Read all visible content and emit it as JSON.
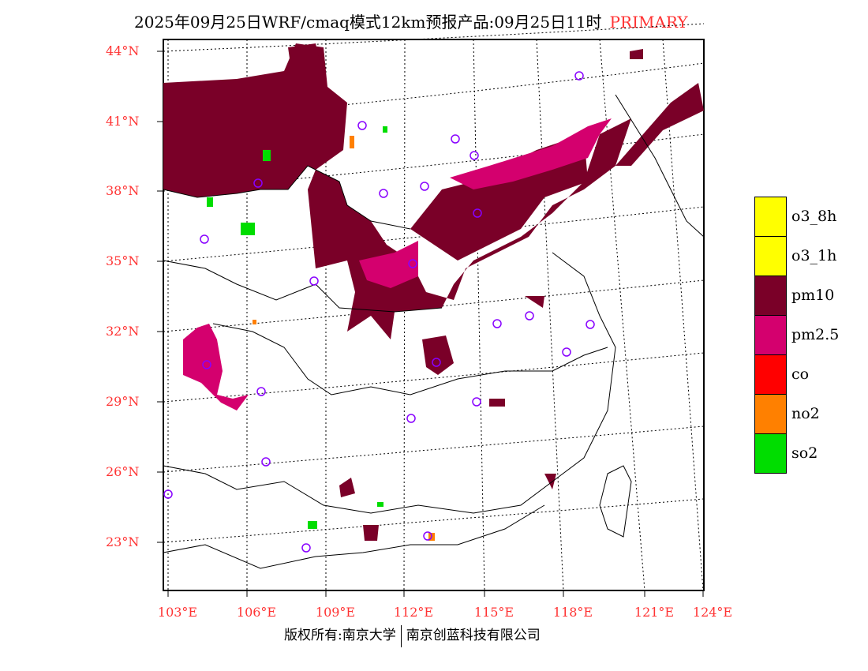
{
  "title": {
    "main": "2025年09月25日WRF/cmaq模式12km预报产品:09月25日11时",
    "tag": "PRIMARY"
  },
  "lat_labels": [
    "44°N",
    "41°N",
    "38°N",
    "35°N",
    "32°N",
    "29°N",
    "26°N",
    "23°N"
  ],
  "lon_labels": [
    "103°E",
    "106°E",
    "109°E",
    "112°E",
    "115°E",
    "118°E",
    "121°E",
    "124°E"
  ],
  "legend": [
    {
      "label": "o3_8h",
      "color": "#ffff00"
    },
    {
      "label": "o3_1h",
      "color": "#ffff00"
    },
    {
      "label": "pm10",
      "color": "#7a0028"
    },
    {
      "label": "pm2.5",
      "color": "#d4006e"
    },
    {
      "label": "co",
      "color": "#ff0000"
    },
    {
      "label": "no2",
      "color": "#ff8000"
    },
    {
      "label": "so2",
      "color": "#00dd00"
    }
  ],
  "footer": {
    "left": "版权所有:南京大学",
    "right": "南京创蓝科技有限公司"
  }
}
